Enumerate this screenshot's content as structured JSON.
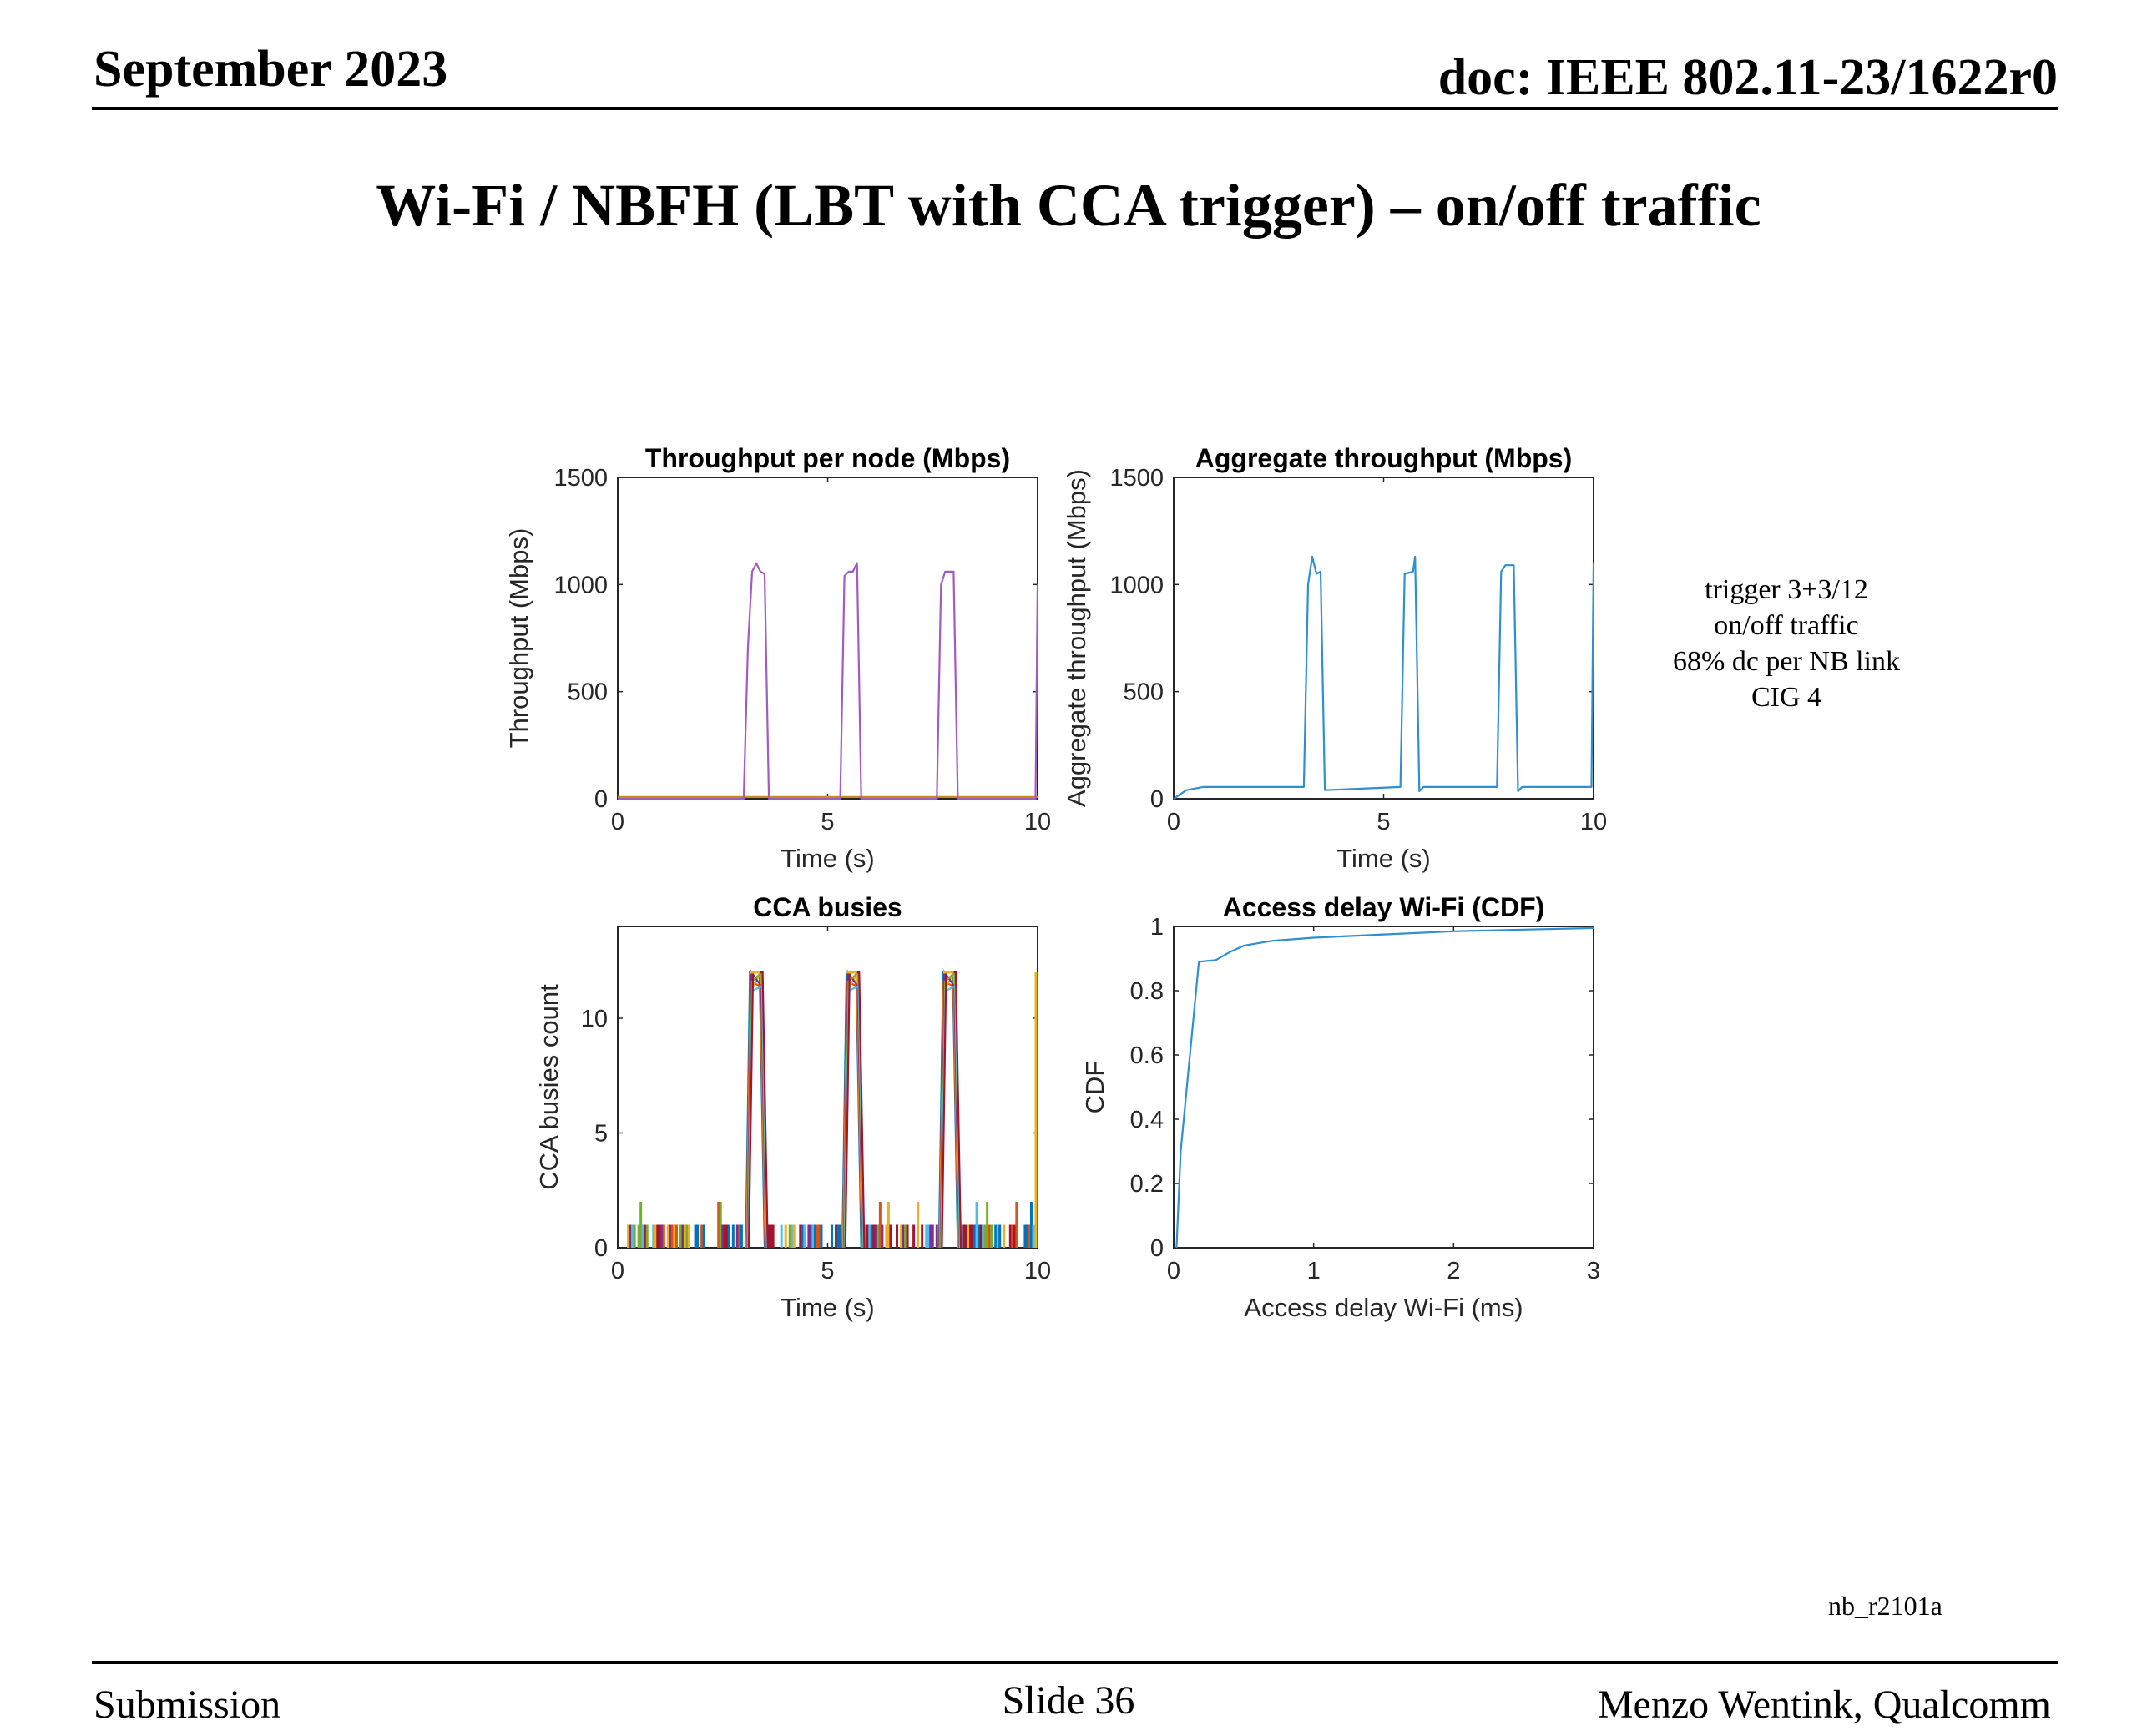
{
  "header": {
    "date": "September 2023",
    "doc_id": "doc: IEEE 802.11-23/1622r0"
  },
  "slide_title": "Wi-Fi / NBFH (LBT with CCA trigger) – on/off traffic",
  "side_note": [
    "trigger 3+3/12",
    "on/off traffic",
    "68% dc per NB link",
    "CIG 4"
  ],
  "figure_label": "nb_r2101a",
  "footer": {
    "left": "Submission",
    "center": "Slide 36",
    "right": "Menzo Wentink, Qualcomm"
  },
  "colors": {
    "per_node": "#a05cc0",
    "aggregate": "#2f8fd0",
    "cdf": "#2f8fd0",
    "flat_node": "#c88a28"
  },
  "chart_data": [
    {
      "type": "line",
      "title": "Throughput per node (Mbps)",
      "xlabel": "Time (s)",
      "ylabel": "Throughput (Mbps)",
      "xlim": [
        0,
        10
      ],
      "ylim": [
        0,
        1500
      ],
      "xticks": [
        0,
        5,
        10
      ],
      "yticks": [
        0,
        500,
        1000,
        1500
      ],
      "series": [
        {
          "x": [
            0,
            3.0,
            3.1,
            3.2,
            3.3,
            3.4,
            3.5,
            3.6,
            5.3,
            5.4,
            5.5,
            5.6,
            5.7,
            5.8,
            7.6,
            7.7,
            7.8,
            7.9,
            8.0,
            8.1,
            9.95,
            10.0
          ],
          "y": [
            0,
            0,
            700,
            1060,
            1100,
            1060,
            1050,
            0,
            0,
            1040,
            1060,
            1060,
            1100,
            0,
            0,
            1000,
            1060,
            1060,
            1060,
            0,
            0,
            1000
          ]
        },
        {
          "x": [
            0,
            10
          ],
          "y": [
            8,
            8
          ]
        }
      ]
    },
    {
      "type": "line",
      "title": "Aggregate throughput (Mbps)",
      "xlabel": "Time (s)",
      "ylabel": "Aggregate throughput (Mbps)",
      "xlim": [
        0,
        10
      ],
      "ylim": [
        0,
        1500
      ],
      "xticks": [
        0,
        5,
        10
      ],
      "yticks": [
        0,
        500,
        1000,
        1500
      ],
      "series": [
        {
          "x": [
            0,
            0.3,
            0.7,
            3.1,
            3.2,
            3.3,
            3.4,
            3.5,
            3.6,
            5.4,
            5.5,
            5.7,
            5.75,
            5.85,
            5.95,
            7.7,
            7.8,
            7.9,
            8.1,
            8.2,
            8.3,
            9.95,
            10.0
          ],
          "y": [
            0,
            40,
            55,
            55,
            1000,
            1130,
            1050,
            1060,
            40,
            55,
            1050,
            1060,
            1130,
            35,
            55,
            55,
            1060,
            1090,
            1090,
            35,
            55,
            55,
            1100
          ]
        }
      ]
    },
    {
      "type": "line",
      "title": "CCA busies",
      "xlabel": "Time (s)",
      "ylabel": "CCA busies count",
      "xlim": [
        0,
        10
      ],
      "ylim": [
        0,
        14
      ],
      "xticks": [
        0,
        5,
        10
      ],
      "yticks": [
        0,
        5,
        10
      ],
      "bursts": [
        {
          "start": 3.1,
          "end": 3.4
        },
        {
          "start": 5.4,
          "end": 5.7
        },
        {
          "start": 7.7,
          "end": 8.0
        }
      ],
      "burst_peak": 12,
      "baseline_level": 1,
      "spike_level": 2
    },
    {
      "type": "line",
      "title": "Access delay Wi-Fi (CDF)",
      "xlabel": "Access delay Wi-Fi (ms)",
      "ylabel": "CDF",
      "xlim": [
        0,
        3
      ],
      "ylim": [
        0,
        1
      ],
      "xticks": [
        0,
        1,
        2,
        3
      ],
      "yticks": [
        0,
        0.2,
        0.4,
        0.6,
        0.8,
        1
      ],
      "series": [
        {
          "x": [
            0.02,
            0.05,
            0.18,
            0.3,
            0.4,
            0.5,
            0.7,
            1.0,
            1.5,
            2.0,
            2.5,
            3.0
          ],
          "y": [
            0,
            0.3,
            0.89,
            0.895,
            0.92,
            0.94,
            0.955,
            0.965,
            0.975,
            0.985,
            0.99,
            0.995
          ]
        }
      ]
    }
  ]
}
